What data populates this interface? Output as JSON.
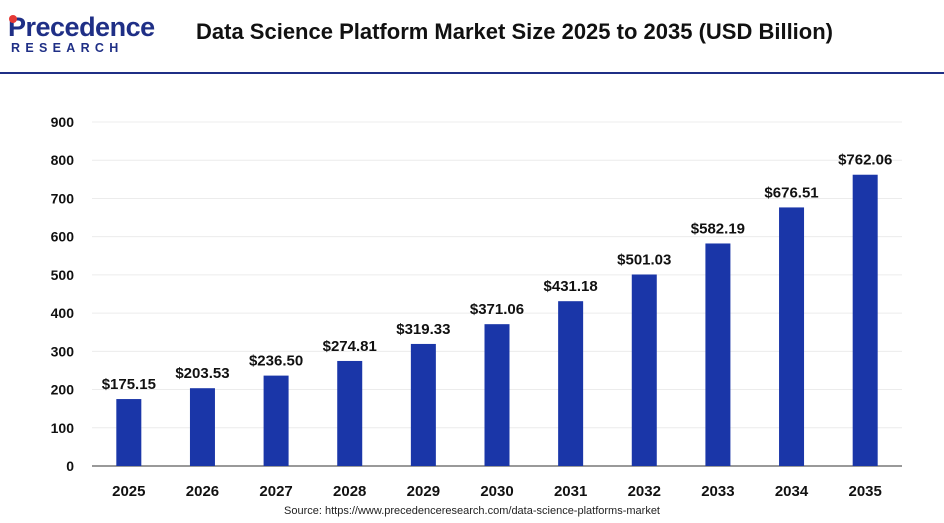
{
  "header": {
    "logo_main": "Precedence",
    "logo_sub": "RESEARCH",
    "title": "Data Science Platform Market Size 2025 to 2035 (USD Billion)"
  },
  "source": "Source: https://www.precedenceresearch.com/data-science-platforms-market",
  "colors": {
    "bar": "#1a36a8",
    "brand": "#1f2f86",
    "logo_dot": "#e53935"
  },
  "chart_data": {
    "type": "bar",
    "title": "Data Science Platform Market Size 2025 to 2035 (USD Billion)",
    "categories": [
      "2025",
      "2026",
      "2027",
      "2028",
      "2029",
      "2030",
      "2031",
      "2032",
      "2033",
      "2034",
      "2035"
    ],
    "values": [
      175.15,
      203.53,
      236.5,
      274.81,
      319.33,
      371.06,
      431.18,
      501.03,
      582.19,
      676.51,
      762.06
    ],
    "data_labels": [
      "$175.15",
      "$203.53",
      "$236.50",
      "$274.81",
      "$319.33",
      "$371.06",
      "$431.18",
      "$501.03",
      "$582.19",
      "$676.51",
      "$762.06"
    ],
    "yticks": [
      "0",
      "100",
      "200",
      "300",
      "400",
      "500",
      "600",
      "700",
      "800",
      "900"
    ],
    "ylim": [
      0,
      900
    ],
    "xlabel": "",
    "ylabel": "",
    "grid": true,
    "legend": "none"
  }
}
